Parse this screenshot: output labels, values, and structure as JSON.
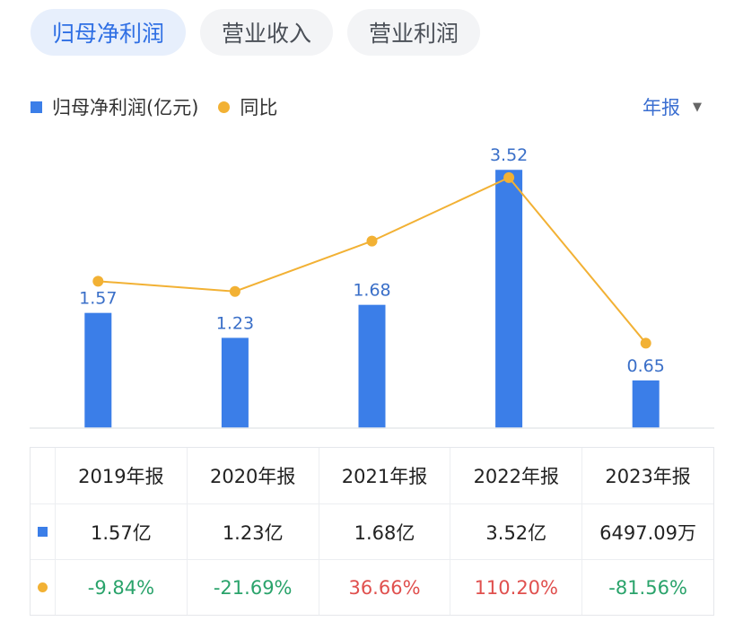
{
  "tabs": [
    {
      "label": "归母净利润",
      "active": true
    },
    {
      "label": "营业收入",
      "active": false
    },
    {
      "label": "营业利润",
      "active": false
    }
  ],
  "legend": {
    "bar_label": "归母净利润(亿元)",
    "line_label": "同比"
  },
  "period_selector": {
    "label": "年报"
  },
  "colors": {
    "bar": "#3b7ee8",
    "line": "#f2b134",
    "positive": "#e0504e",
    "negative": "#2aa36b",
    "accent": "#2f6fe4"
  },
  "chart_data": {
    "type": "bar",
    "categories": [
      "2019年报",
      "2020年报",
      "2021年报",
      "2022年报",
      "2023年报"
    ],
    "series": [
      {
        "name": "归母净利润(亿元)",
        "type": "bar",
        "values": [
          1.57,
          1.23,
          1.68,
          3.52,
          0.65
        ],
        "data_labels": [
          "1.57",
          "1.23",
          "1.68",
          "3.52",
          "0.65"
        ]
      },
      {
        "name": "同比",
        "type": "line",
        "values": [
          -9.84,
          -21.69,
          36.66,
          110.2,
          -81.56
        ]
      }
    ],
    "ylim": [
      0,
      4
    ],
    "line_ylim": [
      -180,
      160
    ],
    "grid": false
  },
  "table": {
    "headers": [
      "2019年报",
      "2020年报",
      "2021年报",
      "2022年报",
      "2023年报"
    ],
    "values": [
      "1.57亿",
      "1.23亿",
      "1.68亿",
      "3.52亿",
      "6497.09万"
    ],
    "yoy": [
      "-9.84%",
      "-21.69%",
      "36.66%",
      "110.20%",
      "-81.56%"
    ]
  }
}
